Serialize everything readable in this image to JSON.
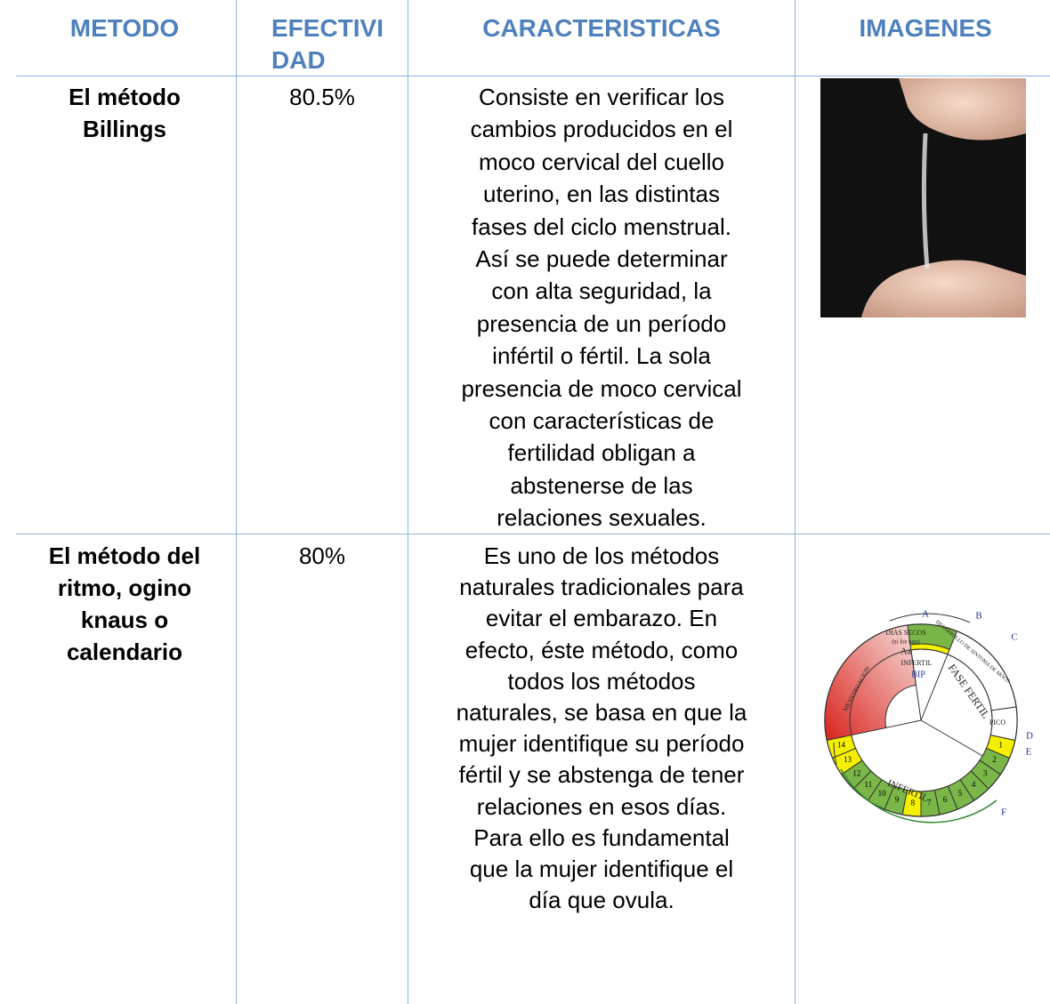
{
  "header": {
    "metodo": "METODO",
    "efectividad": [
      "EFECTIVI",
      "DAD"
    ],
    "caracteristicas": "CARACTERISTICAS",
    "imagenes": "IMAGENES"
  },
  "rows": [
    {
      "metodo": [
        "El método",
        "Billings"
      ],
      "efectividad": "80.5%",
      "caracteristicas": [
        "Consiste en verificar los",
        "cambios producidos en el",
        "moco cervical del cuello",
        "uterino, en las distintas",
        "fases del ciclo menstrual.",
        "Así se puede determinar",
        "con alta seguridad, la",
        "presencia de un período",
        "infértil o fértil. La sola",
        "presencia de moco cervical",
        "con características de",
        "fertilidad obligan a",
        "abstenerse de las",
        "relaciones sexuales."
      ]
    },
    {
      "metodo": [
        "El método del",
        "ritmo, ogino",
        "knaus o",
        "calendario"
      ],
      "efectividad": "80%",
      "caracteristicas": [
        "Es uno de los métodos",
        "naturales tradicionales para",
        "evitar el embarazo. En",
        "efecto, éste método, como",
        "todos los métodos",
        "naturales, se basa en que la",
        "mujer identifique su período",
        "fértil y se abstenga de tener",
        "relaciones en esos días.",
        "Para ello es fundamental",
        "que la mujer identifique el",
        "día que ovula."
      ]
    }
  ],
  "diagram_labels": [
    "A",
    "B",
    "C",
    "D",
    "E",
    "F",
    "DIAS SECOS",
    "(si los hay)",
    "Aa",
    "INFERTIL",
    "BIP",
    "FASE FERTIL",
    "PICO",
    "MENSTRUACION",
    "INFERTIL",
    "DESARROLLO DE SINTOMA DE MOCO"
  ],
  "cycle_days": [
    "1",
    "2",
    "3",
    "4",
    "5",
    "6",
    "7",
    "8",
    "9",
    "10",
    "11",
    "12",
    "13",
    "14"
  ]
}
